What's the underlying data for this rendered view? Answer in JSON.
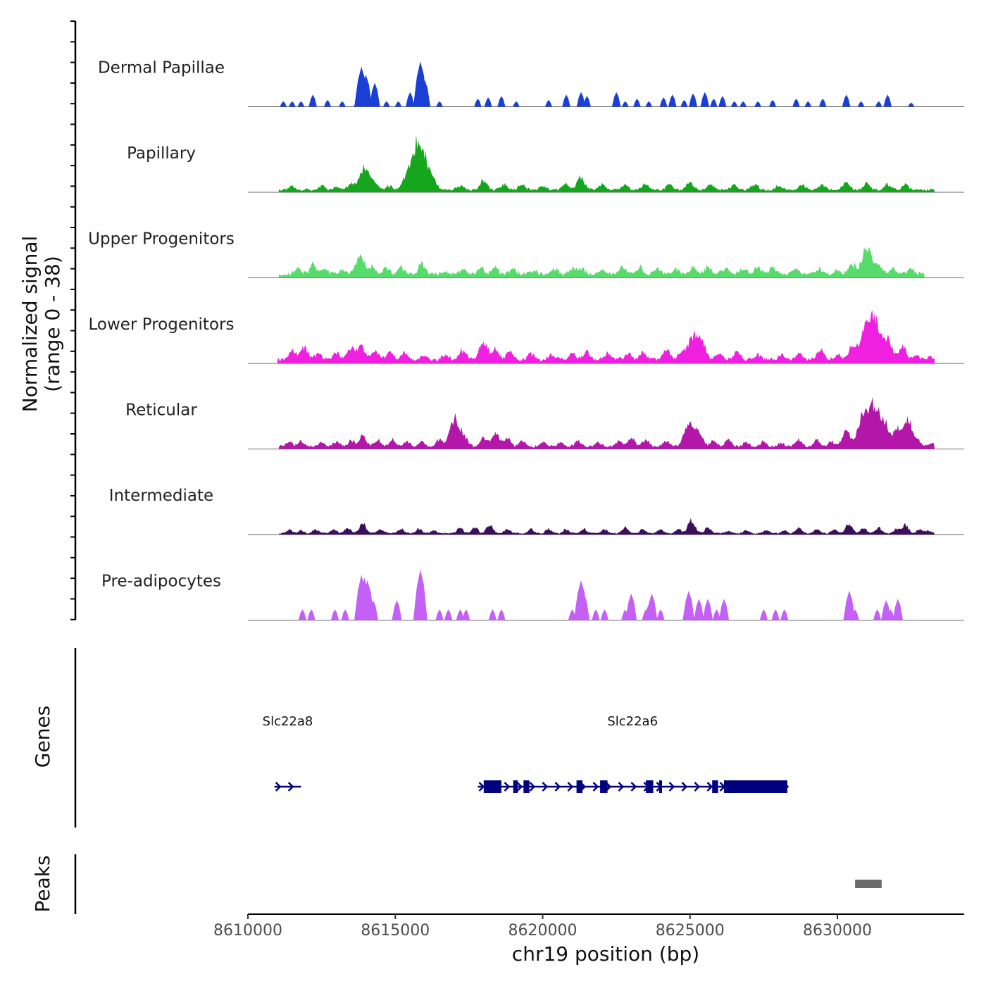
{
  "chart_data": {
    "type": "area",
    "title": "",
    "ylabel_line1": "Normalized signal",
    "ylabel_line2": "(range 0 - 38)",
    "y_range": [
      0,
      38
    ],
    "xlabel": "chr19 position (bp)",
    "xlim": [
      8610000,
      8634300
    ],
    "x_ticks": [
      8610000,
      8615000,
      8620000,
      8625000,
      8630000
    ],
    "x_tick_labels": [
      "8610000",
      "8615000",
      "8620000",
      "8625000",
      "8630000"
    ],
    "tracks": [
      {
        "name": "Dermal Papillae",
        "color": "#1a3fd6",
        "sparse": true,
        "peaks": [
          [
            8611200,
            4
          ],
          [
            8611500,
            4
          ],
          [
            8611800,
            4
          ],
          [
            8612200,
            9
          ],
          [
            8612700,
            5
          ],
          [
            8613200,
            4
          ],
          [
            8613700,
            4
          ],
          [
            8613850,
            30
          ],
          [
            8614000,
            24
          ],
          [
            8614300,
            18
          ],
          [
            8614700,
            4
          ],
          [
            8615100,
            4
          ],
          [
            8615500,
            11
          ],
          [
            8615850,
            34
          ],
          [
            8616000,
            20
          ],
          [
            8616500,
            4
          ],
          [
            8617800,
            6
          ],
          [
            8618150,
            7
          ],
          [
            8618600,
            8
          ],
          [
            8619100,
            4
          ],
          [
            8620200,
            5
          ],
          [
            8620800,
            9
          ],
          [
            8621300,
            11
          ],
          [
            8621500,
            8
          ],
          [
            8622500,
            11
          ],
          [
            8622800,
            4
          ],
          [
            8623200,
            6
          ],
          [
            8623600,
            4
          ],
          [
            8624100,
            7
          ],
          [
            8624400,
            9
          ],
          [
            8624800,
            5
          ],
          [
            8625100,
            10
          ],
          [
            8625500,
            11
          ],
          [
            8625800,
            6
          ],
          [
            8626100,
            8
          ],
          [
            8626500,
            4
          ],
          [
            8626800,
            4
          ],
          [
            8627300,
            4
          ],
          [
            8627800,
            5
          ],
          [
            8628600,
            6
          ],
          [
            8629000,
            4
          ],
          [
            8629500,
            6
          ],
          [
            8630300,
            9
          ],
          [
            8630800,
            4
          ],
          [
            8631400,
            4
          ],
          [
            8631700,
            9
          ],
          [
            8632500,
            3
          ]
        ]
      },
      {
        "name": "Papillary",
        "color": "#15a61e",
        "sparse": false,
        "start": 8611050,
        "end": 8633300,
        "base": 2,
        "peaks": [
          [
            8611500,
            3
          ],
          [
            8612500,
            3
          ],
          [
            8613000,
            2
          ],
          [
            8613500,
            5
          ],
          [
            8613950,
            16
          ],
          [
            8614300,
            5
          ],
          [
            8614800,
            3
          ],
          [
            8615300,
            4
          ],
          [
            8615800,
            38
          ],
          [
            8616300,
            4
          ],
          [
            8617200,
            3
          ],
          [
            8618000,
            7
          ],
          [
            8618700,
            4
          ],
          [
            8619300,
            4
          ],
          [
            8620000,
            3
          ],
          [
            8620800,
            4
          ],
          [
            8621300,
            9
          ],
          [
            8622000,
            4
          ],
          [
            8622800,
            4
          ],
          [
            8623500,
            4
          ],
          [
            8624300,
            4
          ],
          [
            8625000,
            5
          ],
          [
            8625700,
            4
          ],
          [
            8626500,
            4
          ],
          [
            8627200,
            4
          ],
          [
            8628000,
            3
          ],
          [
            8628800,
            4
          ],
          [
            8629500,
            4
          ],
          [
            8630300,
            6
          ],
          [
            8631000,
            5
          ],
          [
            8631700,
            4
          ],
          [
            8632300,
            4
          ]
        ]
      },
      {
        "name": "Upper Progenitors",
        "color": "#57db6b",
        "sparse": false,
        "start": 8611050,
        "end": 8632950,
        "base": 3,
        "peaks": [
          [
            8611700,
            5
          ],
          [
            8612200,
            7
          ],
          [
            8612600,
            4
          ],
          [
            8613200,
            3
          ],
          [
            8613800,
            13
          ],
          [
            8614200,
            5
          ],
          [
            8614700,
            5
          ],
          [
            8615200,
            5
          ],
          [
            8615900,
            7
          ],
          [
            8616700,
            2
          ],
          [
            8617300,
            3
          ],
          [
            8617900,
            5
          ],
          [
            8618400,
            5
          ],
          [
            8619000,
            4
          ],
          [
            8619700,
            3
          ],
          [
            8620400,
            4
          ],
          [
            8621000,
            4
          ],
          [
            8621300,
            5
          ],
          [
            8622000,
            3
          ],
          [
            8622700,
            5
          ],
          [
            8623300,
            5
          ],
          [
            8623900,
            4
          ],
          [
            8624500,
            4
          ],
          [
            8625100,
            5
          ],
          [
            8625600,
            5
          ],
          [
            8626200,
            4
          ],
          [
            8626800,
            4
          ],
          [
            8627300,
            5
          ],
          [
            8627800,
            5
          ],
          [
            8628600,
            4
          ],
          [
            8629400,
            4
          ],
          [
            8630000,
            3
          ],
          [
            8630500,
            7
          ],
          [
            8631000,
            19
          ],
          [
            8631400,
            6
          ],
          [
            8631900,
            5
          ],
          [
            8632500,
            4
          ]
        ]
      },
      {
        "name": "Lower Progenitors",
        "color": "#f020e0",
        "sparse": false,
        "start": 8611000,
        "end": 8633300,
        "base": 3,
        "peaks": [
          [
            8611500,
            7
          ],
          [
            8611900,
            9
          ],
          [
            8612400,
            5
          ],
          [
            8613000,
            6
          ],
          [
            8613500,
            8
          ],
          [
            8613850,
            10
          ],
          [
            8614300,
            7
          ],
          [
            8614800,
            6
          ],
          [
            8615300,
            5
          ],
          [
            8616000,
            3
          ],
          [
            8616700,
            4
          ],
          [
            8617300,
            7
          ],
          [
            8618000,
            13
          ],
          [
            8618400,
            7
          ],
          [
            8618900,
            6
          ],
          [
            8619600,
            4
          ],
          [
            8620300,
            4
          ],
          [
            8621000,
            5
          ],
          [
            8621500,
            6
          ],
          [
            8622200,
            5
          ],
          [
            8622900,
            5
          ],
          [
            8623400,
            5
          ],
          [
            8624200,
            7
          ],
          [
            8624700,
            5
          ],
          [
            8625100,
            17
          ],
          [
            8625400,
            12
          ],
          [
            8626000,
            5
          ],
          [
            8626600,
            6
          ],
          [
            8627300,
            4
          ],
          [
            8628100,
            4
          ],
          [
            8628700,
            5
          ],
          [
            8629400,
            7
          ],
          [
            8630000,
            4
          ],
          [
            8630500,
            9
          ],
          [
            8631000,
            27
          ],
          [
            8631300,
            21
          ],
          [
            8631700,
            14
          ],
          [
            8632200,
            10
          ],
          [
            8632700,
            3
          ],
          [
            8633100,
            2
          ]
        ]
      },
      {
        "name": "Reticular",
        "color": "#b316a8",
        "sparse": false,
        "start": 8611050,
        "end": 8633300,
        "base": 2,
        "peaks": [
          [
            8611400,
            3
          ],
          [
            8611800,
            4
          ],
          [
            8612500,
            3
          ],
          [
            8613000,
            4
          ],
          [
            8613500,
            5
          ],
          [
            8613900,
            8
          ],
          [
            8614400,
            5
          ],
          [
            8614900,
            5
          ],
          [
            8615400,
            4
          ],
          [
            8615900,
            4
          ],
          [
            8616500,
            5
          ],
          [
            8616900,
            8
          ],
          [
            8617100,
            17
          ],
          [
            8617400,
            4
          ],
          [
            8618000,
            6
          ],
          [
            8618400,
            10
          ],
          [
            8618800,
            6
          ],
          [
            8619300,
            4
          ],
          [
            8620000,
            3
          ],
          [
            8620600,
            3
          ],
          [
            8621200,
            4
          ],
          [
            8621900,
            3
          ],
          [
            8622600,
            4
          ],
          [
            8623000,
            6
          ],
          [
            8623500,
            5
          ],
          [
            8624200,
            4
          ],
          [
            8624800,
            4
          ],
          [
            8625000,
            15
          ],
          [
            8625300,
            10
          ],
          [
            8625800,
            4
          ],
          [
            8626300,
            5
          ],
          [
            8626900,
            3
          ],
          [
            8627500,
            4
          ],
          [
            8628100,
            3
          ],
          [
            8628700,
            5
          ],
          [
            8629300,
            5
          ],
          [
            8629800,
            4
          ],
          [
            8630300,
            12
          ],
          [
            8630950,
            27
          ],
          [
            8631300,
            20
          ],
          [
            8631600,
            15
          ],
          [
            8632000,
            11
          ],
          [
            8632400,
            19
          ],
          [
            8632800,
            3
          ],
          [
            8633200,
            2
          ]
        ]
      },
      {
        "name": "Intermediate",
        "color": "#3b0f5c",
        "sparse": false,
        "start": 8611050,
        "end": 8633300,
        "base": 1,
        "peaks": [
          [
            8611400,
            3
          ],
          [
            8611800,
            2
          ],
          [
            8612300,
            3
          ],
          [
            8612900,
            3
          ],
          [
            8613400,
            4
          ],
          [
            8613900,
            7
          ],
          [
            8614500,
            3
          ],
          [
            8615200,
            3
          ],
          [
            8615800,
            3
          ],
          [
            8616300,
            2
          ],
          [
            8617200,
            4
          ],
          [
            8617700,
            4
          ],
          [
            8618200,
            6
          ],
          [
            8618800,
            3
          ],
          [
            8619600,
            3
          ],
          [
            8620200,
            3
          ],
          [
            8620800,
            3
          ],
          [
            8621400,
            3
          ],
          [
            8622100,
            3
          ],
          [
            8622800,
            4
          ],
          [
            8623400,
            3
          ],
          [
            8624000,
            3
          ],
          [
            8624600,
            3
          ],
          [
            8625050,
            9
          ],
          [
            8625600,
            4
          ],
          [
            8626300,
            2
          ],
          [
            8626900,
            2
          ],
          [
            8627600,
            2
          ],
          [
            8628200,
            2
          ],
          [
            8628700,
            4
          ],
          [
            8629300,
            3
          ],
          [
            8629900,
            3
          ],
          [
            8630400,
            7
          ],
          [
            8630900,
            4
          ],
          [
            8631400,
            4
          ],
          [
            8632000,
            3
          ],
          [
            8632300,
            6
          ],
          [
            8632800,
            3
          ],
          [
            8633100,
            2
          ]
        ]
      },
      {
        "name": "Pre-adipocytes",
        "color": "#c460f5",
        "sparse": true,
        "peaks": [
          [
            8611850,
            8
          ],
          [
            8612150,
            8
          ],
          [
            8612950,
            8
          ],
          [
            8613300,
            8
          ],
          [
            8613850,
            34
          ],
          [
            8613950,
            32
          ],
          [
            8614050,
            30
          ],
          [
            8614250,
            15
          ],
          [
            8615050,
            15
          ],
          [
            8615850,
            38
          ],
          [
            8616500,
            8
          ],
          [
            8616800,
            8
          ],
          [
            8617200,
            8
          ],
          [
            8617400,
            8
          ],
          [
            8618300,
            8
          ],
          [
            8618600,
            8
          ],
          [
            8621000,
            8
          ],
          [
            8621300,
            30
          ],
          [
            8621400,
            20
          ],
          [
            8621800,
            8
          ],
          [
            8622100,
            8
          ],
          [
            8622800,
            8
          ],
          [
            8623000,
            20
          ],
          [
            8623500,
            8
          ],
          [
            8623600,
            12
          ],
          [
            8623700,
            20
          ],
          [
            8624000,
            8
          ],
          [
            8624950,
            22
          ],
          [
            8625300,
            16
          ],
          [
            8625600,
            16
          ],
          [
            8625900,
            8
          ],
          [
            8626150,
            16
          ],
          [
            8627500,
            8
          ],
          [
            8627900,
            8
          ],
          [
            8628200,
            8
          ],
          [
            8630400,
            22
          ],
          [
            8630600,
            8
          ],
          [
            8631350,
            8
          ],
          [
            8631650,
            15
          ],
          [
            8631800,
            8
          ],
          [
            8632050,
            16
          ]
        ]
      }
    ],
    "genes": [
      {
        "name": "Slc22a8",
        "start": 8610900,
        "end": 8611800,
        "strand": "+",
        "exons": []
      },
      {
        "name": "Slc22a6",
        "start": 8617800,
        "end": 8628300,
        "strand": "+",
        "exons": [
          [
            8618000,
            8618600
          ],
          [
            8619000,
            8619150
          ],
          [
            8619350,
            8619550
          ],
          [
            8621150,
            8621350
          ],
          [
            8621950,
            8622200
          ],
          [
            8623500,
            8623750
          ],
          [
            8623950,
            8624050
          ],
          [
            8625750,
            8625950
          ],
          [
            8626150,
            8628300
          ]
        ]
      }
    ],
    "peaks_track": {
      "label": "Peaks",
      "color": "#6b6b6b",
      "regions": [
        [
          8630600,
          8631500
        ]
      ]
    },
    "genes_axis_label": "Genes"
  }
}
